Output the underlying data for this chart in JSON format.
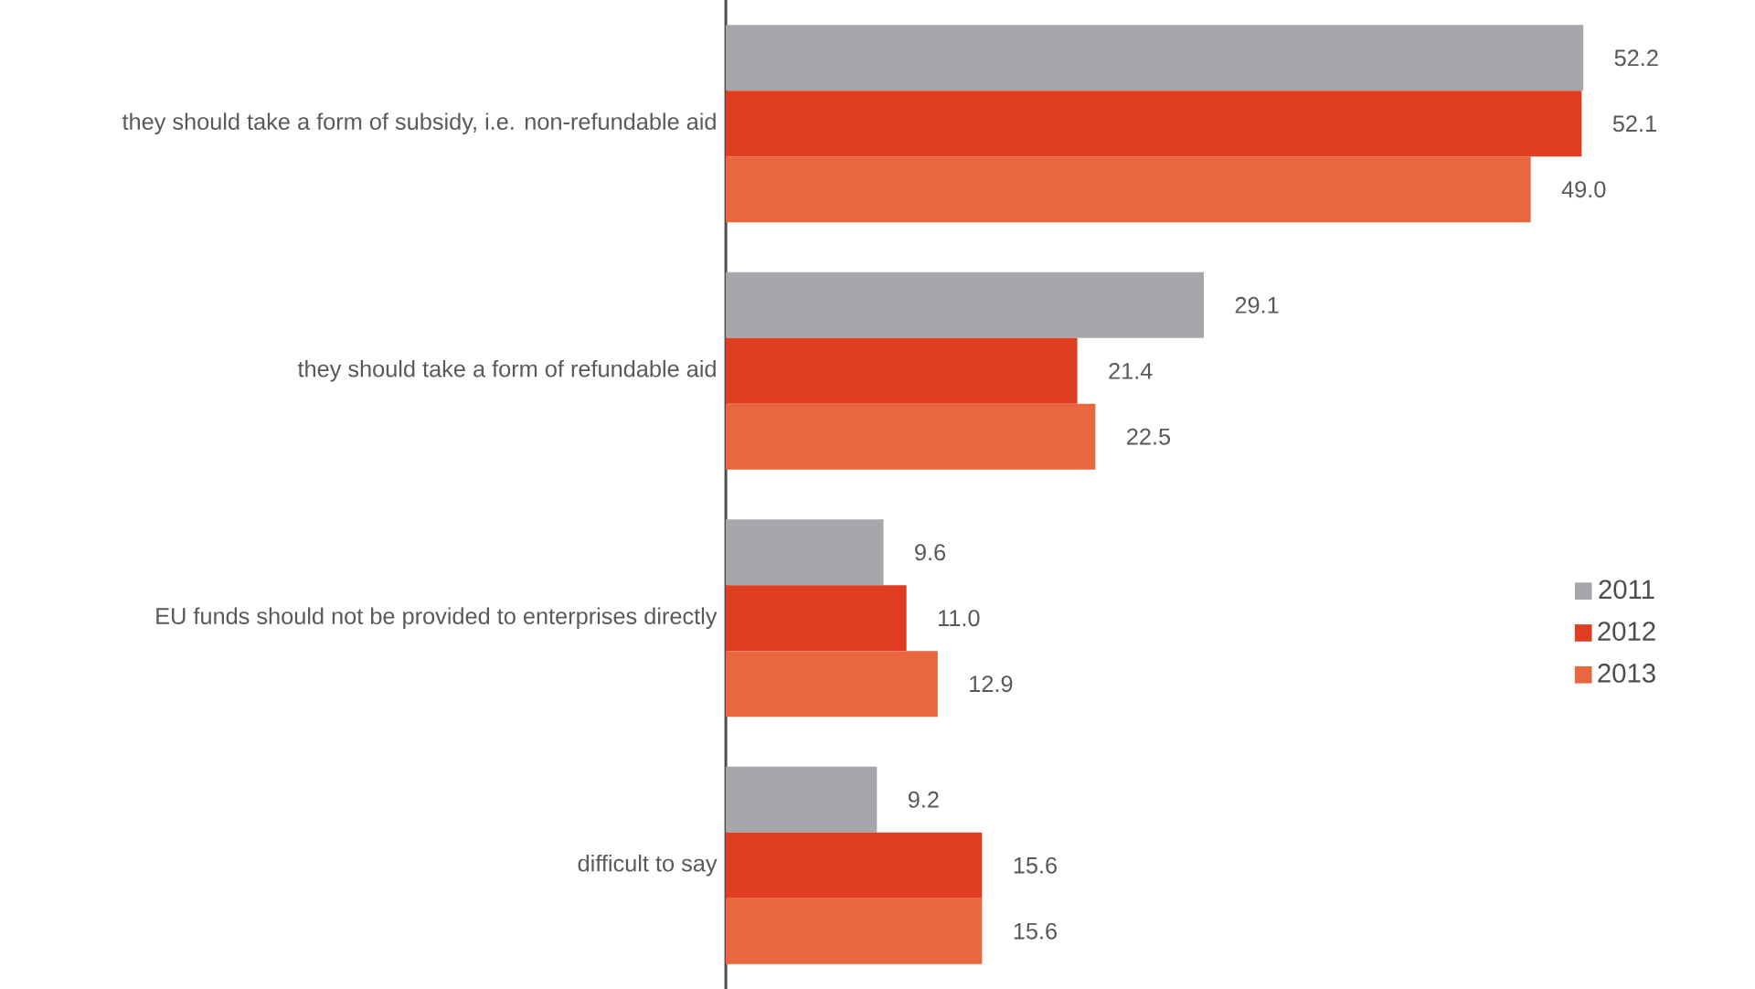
{
  "chart_data": {
    "type": "bar",
    "orientation": "horizontal",
    "legend": "right",
    "categories": [
      "they should take a form of subsidy, i.e. non-refundable aid",
      "they should take a form of refundable aid",
      "EU funds should not be provided to enterprises directly",
      "difficult to say"
    ],
    "series": [
      {
        "name": "2011",
        "color": "#a7a6ab",
        "values": [
          52.2,
          29.1,
          9.6,
          9.2
        ],
        "value_labels": [
          "52.2",
          "29.1",
          "9.6",
          "9.2"
        ]
      },
      {
        "name": "2012",
        "color": "#e03e21",
        "values": [
          52.1,
          21.4,
          11.0,
          15.6
        ],
        "value_labels": [
          "52.1",
          "21.4",
          "11.0",
          "15.6"
        ]
      },
      {
        "name": "2013",
        "color": "#e8673f",
        "values": [
          49.0,
          22.5,
          12.9,
          15.6
        ],
        "value_labels": [
          "49.0",
          "22.5",
          "12.9",
          "15.6"
        ]
      }
    ]
  }
}
